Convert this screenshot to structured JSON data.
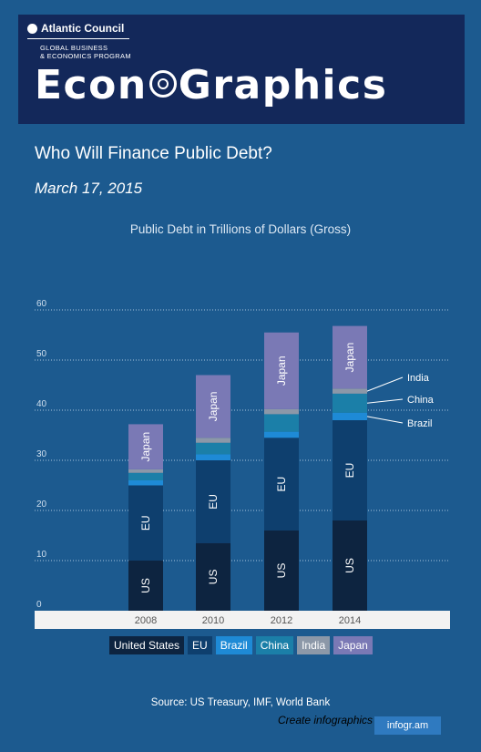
{
  "banner": {
    "org": "Atlantic Council",
    "program_line1": "GLOBAL BUSINESS",
    "program_line2": "& ECONOMICS PROGRAM",
    "masthead_left": "Econ",
    "masthead_right": "Graphics"
  },
  "header": {
    "title": "Who Will Finance Public Debt?",
    "date": "March 17, 2015"
  },
  "chart_data": {
    "type": "bar",
    "stacked": true,
    "title": "Public Debt in Trillions of Dollars (Gross)",
    "categories": [
      "2008",
      "2010",
      "2012",
      "2014"
    ],
    "ylim": [
      0,
      60
    ],
    "yticks": [
      "0",
      "10",
      "20",
      "30",
      "40",
      "50",
      "60"
    ],
    "grid": true,
    "legend_position": "bottom",
    "series": [
      {
        "name": "United States",
        "segment_label": "US",
        "color": "#0d2440",
        "values": [
          10,
          13.5,
          16,
          18
        ]
      },
      {
        "name": "EU",
        "segment_label": "EU",
        "color": "#0e3f6e",
        "values": [
          15,
          16.5,
          18.5,
          20
        ]
      },
      {
        "name": "Brazil",
        "segment_label": "",
        "color": "#1e8ad6",
        "values": [
          1,
          1.2,
          1.2,
          1.5
        ]
      },
      {
        "name": "China",
        "segment_label": "",
        "color": "#1b7fa8",
        "values": [
          1.5,
          2.3,
          3.5,
          3.8
        ]
      },
      {
        "name": "India",
        "segment_label": "",
        "color": "#8c98a8",
        "values": [
          0.7,
          1,
          1,
          1
        ]
      },
      {
        "name": "Japan",
        "segment_label": "Japan",
        "color": "#7a79b5",
        "values": [
          9,
          12.5,
          15.3,
          12.5
        ]
      }
    ],
    "annotations": [
      "India",
      "China",
      "Brazil"
    ]
  },
  "footer": {
    "source": "Source: US Treasury, IMF, World Bank",
    "create": "Create infographics",
    "brand": "infogr.am"
  }
}
